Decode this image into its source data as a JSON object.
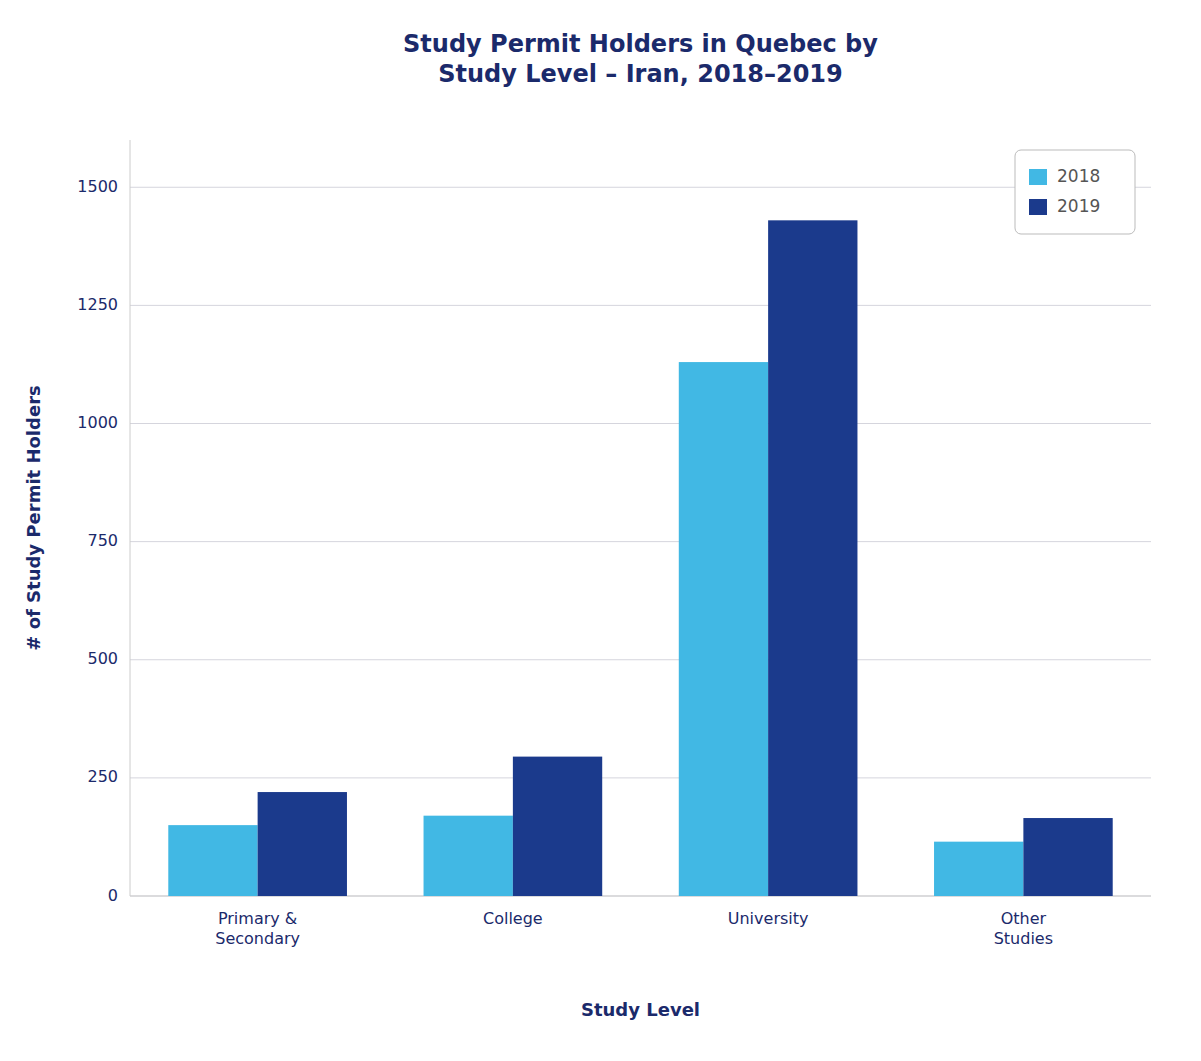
{
  "chart_data": {
    "type": "bar",
    "title": "Study Permit Holders in Quebec by\nStudy Level – Iran, 2018–2019",
    "x_label": "Study Level",
    "y_label": "# of Study Permit Holders",
    "categories": [
      "Primary &\nSecondary",
      "College",
      "University",
      "Other\nStudies"
    ],
    "series": [
      {
        "name": "2018",
        "color": "#41B8E4",
        "values": [
          150,
          170,
          1130,
          115
        ]
      },
      {
        "name": "2019",
        "color": "#1B3A8C",
        "values": [
          220,
          295,
          1430,
          165
        ]
      }
    ],
    "ylim": [
      0,
      1600
    ],
    "yticks": [
      0,
      250,
      500,
      750,
      1000,
      1250,
      1500
    ],
    "grid": true,
    "legend": "upper right"
  }
}
